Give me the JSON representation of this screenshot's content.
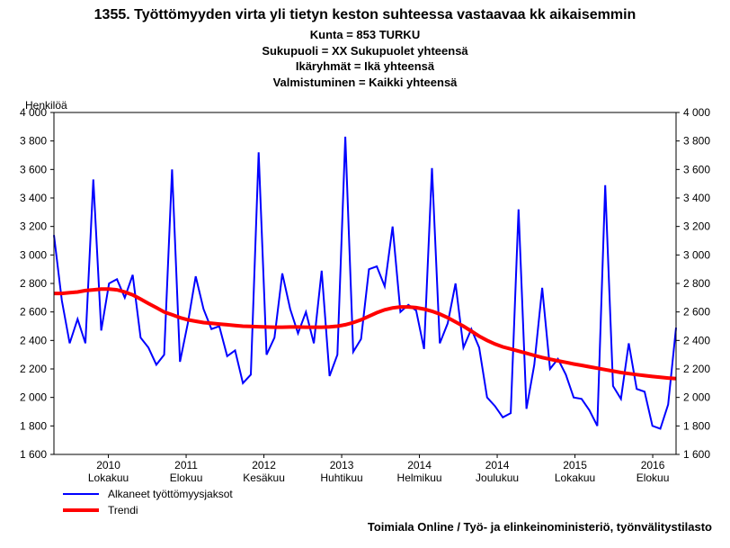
{
  "title": "1355. Työttömyyden virta yli tietyn keston suhteessa vastaavaa kk aikaisemmin",
  "subtitle_lines": [
    "Kunta = 853 TURKU",
    "Sukupuoli = XX Sukupuolet yhteensä",
    "Ikäryhmät = Ikä yhteensä",
    "Valmistuminen = Kaikki yhteensä"
  ],
  "y_axis_label": "Henkilöä",
  "source": "Toimiala Online / Työ- ja elinkeinoministeriö, työnvälitystilasto",
  "chart": {
    "type": "line",
    "background_color": "#ffffff",
    "grid_color": "#d0d0d0",
    "axis_color": "#000000",
    "tick_fontsize": 12,
    "title_fontsize": 16,
    "subtitle_fontsize": 13,
    "ylim": [
      1600,
      4000
    ],
    "ytick_step": 200,
    "xlim": [
      0,
      80
    ],
    "x_ticks": [
      {
        "pos": 7,
        "label_top": "2010",
        "label_bot": "Lokakuu"
      },
      {
        "pos": 17,
        "label_top": "2011",
        "label_bot": "Elokuu"
      },
      {
        "pos": 27,
        "label_top": "2012",
        "label_bot": "Kesäkuu"
      },
      {
        "pos": 37,
        "label_top": "2013",
        "label_bot": "Huhtikuu"
      },
      {
        "pos": 47,
        "label_top": "2014",
        "label_bot": "Helmikuu"
      },
      {
        "pos": 57,
        "label_top": "2014",
        "label_bot": "Joulukuu"
      },
      {
        "pos": 67,
        "label_top": "2015",
        "label_bot": "Lokakuu"
      },
      {
        "pos": 77,
        "label_top": "2016",
        "label_bot": "Elokuu"
      }
    ],
    "series": [
      {
        "name": "Alkaneet työttömyysjaksot",
        "color": "#0000ff",
        "width": 2,
        "values": [
          3140,
          2680,
          2380,
          2550,
          2380,
          3530,
          2470,
          2800,
          2830,
          2700,
          2860,
          2420,
          2350,
          2230,
          2300,
          3600,
          2250,
          2520,
          2850,
          2620,
          2480,
          2500,
          2290,
          2330,
          2100,
          2160,
          3720,
          2300,
          2420,
          2870,
          2620,
          2450,
          2600,
          2380,
          2890,
          2150,
          2300,
          3830,
          2320,
          2410,
          2900,
          2920,
          2780,
          3200,
          2600,
          2650,
          2610,
          2340,
          3610,
          2380,
          2520,
          2800,
          2350,
          2480,
          2350,
          2000,
          1940,
          1860,
          1890,
          3320,
          1920,
          2230,
          2770,
          2200,
          2270,
          2160,
          2000,
          1990,
          1910,
          1800,
          3490,
          2080,
          1990,
          2380,
          2060,
          2040,
          1800,
          1780,
          1950,
          2490
        ]
      },
      {
        "name": "Trendi",
        "color": "#ff0000",
        "width": 4,
        "values": [
          2730,
          2730,
          2735,
          2740,
          2750,
          2755,
          2760,
          2760,
          2755,
          2740,
          2720,
          2690,
          2660,
          2630,
          2600,
          2580,
          2560,
          2545,
          2535,
          2525,
          2520,
          2515,
          2510,
          2505,
          2500,
          2498,
          2496,
          2494,
          2493,
          2493,
          2494,
          2494,
          2493,
          2493,
          2493,
          2495,
          2500,
          2510,
          2525,
          2545,
          2570,
          2595,
          2615,
          2628,
          2635,
          2635,
          2630,
          2620,
          2605,
          2585,
          2560,
          2530,
          2500,
          2465,
          2430,
          2400,
          2375,
          2355,
          2340,
          2325,
          2310,
          2295,
          2280,
          2268,
          2257,
          2246,
          2235,
          2225,
          2215,
          2205,
          2195,
          2185,
          2175,
          2167,
          2160,
          2153,
          2147,
          2141,
          2136,
          2132
        ]
      }
    ]
  },
  "legend": [
    {
      "label": "Alkaneet työttömyysjaksot",
      "color": "#0000ff",
      "width": 2
    },
    {
      "label": "Trendi",
      "color": "#ff0000",
      "width": 4
    }
  ]
}
